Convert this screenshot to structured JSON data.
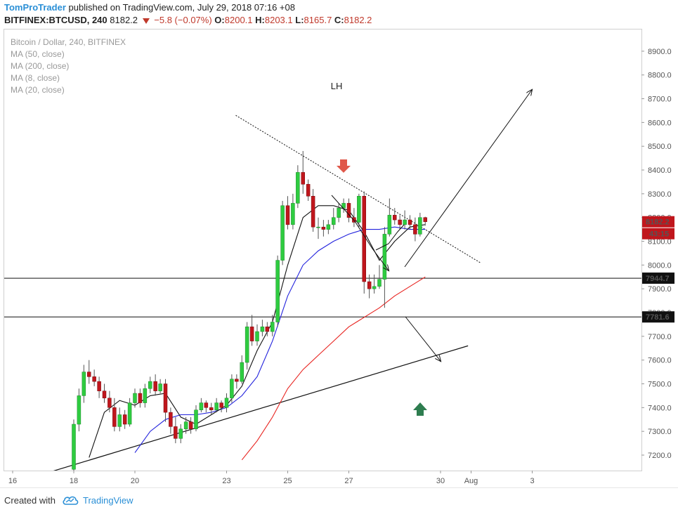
{
  "header": {
    "author": "TomProTrader",
    "published": "published on TradingView.com, July 29, 2018 07:16 +08",
    "symbol": "BITFINEX:BTCUSD, 240",
    "last": "8182.2",
    "change": "−5.8 (−0.07%)",
    "o_label": "O:",
    "o_val": "8200.1",
    "h_label": "H:",
    "h_val": "8203.1",
    "l_label": "L:",
    "l_val": "8165.7",
    "c_label": "C:",
    "c_val": "8182.2"
  },
  "legend": {
    "title": "Bitcoin / Dollar, 240, BITFINEX",
    "items": [
      "MA (50, close)",
      "MA (200, close)",
      "MA (8, close)",
      "MA (20, close)"
    ]
  },
  "footer": {
    "created": "Created with",
    "brand": "TradingView"
  },
  "colors": {
    "up": "#2ecc40",
    "down": "#c0161c",
    "ma_red": "#e8231f",
    "ma_blue": "#2222dd",
    "ma_black": "#111111",
    "arrow_red": "#e0584a",
    "arrow_green": "#2e7d4f",
    "price_box": "#c0161c"
  },
  "chart_data": {
    "type": "candlestick",
    "y_axis": {
      "ylim": [
        7140,
        9020
      ],
      "ticks": [
        7200,
        7300,
        7400,
        7500,
        7600,
        7700,
        7800,
        7900,
        8000,
        8100,
        8200,
        8300,
        8400,
        8500,
        8600,
        8700,
        8800,
        8900
      ]
    },
    "x_axis": {
      "ticks": [
        {
          "label": "16",
          "t": 16
        },
        {
          "label": "18",
          "t": 18
        },
        {
          "label": "20",
          "t": 20
        },
        {
          "label": "23",
          "t": 23
        },
        {
          "label": "25",
          "t": 25
        },
        {
          "label": "27",
          "t": 27
        },
        {
          "label": "30",
          "t": 30
        },
        {
          "label": "Aug",
          "t": 31
        },
        {
          "label": "3",
          "t": 33
        }
      ]
    },
    "candles": [
      [
        18.0,
        7140,
        7330,
        7100,
        7350
      ],
      [
        18.17,
        7330,
        7450,
        7300,
        7480
      ],
      [
        18.33,
        7450,
        7550,
        7420,
        7580
      ],
      [
        18.5,
        7550,
        7530,
        7500,
        7600
      ],
      [
        18.67,
        7530,
        7510,
        7490,
        7560
      ],
      [
        18.83,
        7510,
        7470,
        7440,
        7530
      ],
      [
        19.0,
        7470,
        7440,
        7420,
        7500
      ],
      [
        19.17,
        7440,
        7400,
        7380,
        7470
      ],
      [
        19.33,
        7400,
        7320,
        7300,
        7440
      ],
      [
        19.5,
        7320,
        7370,
        7300,
        7400
      ],
      [
        19.67,
        7370,
        7330,
        7310,
        7390
      ],
      [
        19.83,
        7330,
        7420,
        7320,
        7440
      ],
      [
        20.0,
        7420,
        7460,
        7400,
        7480
      ],
      [
        20.17,
        7460,
        7420,
        7400,
        7480
      ],
      [
        20.33,
        7420,
        7480,
        7400,
        7500
      ],
      [
        20.5,
        7480,
        7510,
        7460,
        7530
      ],
      [
        20.67,
        7510,
        7470,
        7450,
        7540
      ],
      [
        20.83,
        7470,
        7500,
        7460,
        7520
      ],
      [
        21.0,
        7500,
        7380,
        7340,
        7520
      ],
      [
        21.17,
        7380,
        7320,
        7290,
        7400
      ],
      [
        21.33,
        7320,
        7270,
        7250,
        7360
      ],
      [
        21.5,
        7270,
        7310,
        7250,
        7330
      ],
      [
        21.67,
        7310,
        7340,
        7290,
        7360
      ],
      [
        21.83,
        7340,
        7310,
        7290,
        7360
      ],
      [
        22.0,
        7310,
        7390,
        7300,
        7410
      ],
      [
        22.17,
        7390,
        7420,
        7380,
        7440
      ],
      [
        22.33,
        7420,
        7400,
        7380,
        7430
      ],
      [
        22.5,
        7400,
        7390,
        7370,
        7420
      ],
      [
        22.67,
        7390,
        7420,
        7380,
        7440
      ],
      [
        22.83,
        7420,
        7400,
        7380,
        7430
      ],
      [
        23.0,
        7400,
        7440,
        7380,
        7460
      ],
      [
        23.17,
        7440,
        7520,
        7420,
        7540
      ],
      [
        23.33,
        7520,
        7510,
        7480,
        7540
      ],
      [
        23.5,
        7510,
        7590,
        7500,
        7620
      ],
      [
        23.67,
        7590,
        7740,
        7560,
        7760
      ],
      [
        23.83,
        7740,
        7680,
        7660,
        7790
      ],
      [
        24.0,
        7680,
        7720,
        7660,
        7750
      ],
      [
        24.17,
        7720,
        7740,
        7700,
        7770
      ],
      [
        24.33,
        7740,
        7720,
        7700,
        7760
      ],
      [
        24.5,
        7720,
        7760,
        7700,
        7790
      ],
      [
        24.67,
        7760,
        8020,
        7740,
        8040
      ],
      [
        24.83,
        8020,
        8250,
        8000,
        8270
      ],
      [
        25.0,
        8250,
        8170,
        8150,
        8290
      ],
      [
        25.17,
        8170,
        8260,
        8150,
        8300
      ],
      [
        25.33,
        8260,
        8390,
        8240,
        8420
      ],
      [
        25.5,
        8390,
        8340,
        8300,
        8480
      ],
      [
        25.67,
        8340,
        8290,
        8270,
        8360
      ],
      [
        25.83,
        8290,
        8160,
        8140,
        8320
      ],
      [
        26.0,
        8160,
        8160,
        8110,
        8200
      ],
      [
        26.17,
        8160,
        8150,
        8120,
        8190
      ],
      [
        26.33,
        8150,
        8170,
        8130,
        8190
      ],
      [
        26.5,
        8170,
        8200,
        8150,
        8240
      ],
      [
        26.67,
        8200,
        8240,
        8180,
        8260
      ],
      [
        26.83,
        8240,
        8260,
        8220,
        8280
      ],
      [
        27.0,
        8260,
        8200,
        8180,
        8280
      ],
      [
        27.17,
        8200,
        8180,
        8160,
        8240
      ],
      [
        27.33,
        8180,
        8290,
        8160,
        8300
      ],
      [
        27.5,
        8290,
        7930,
        7880,
        8310
      ],
      [
        27.67,
        7930,
        7900,
        7860,
        7960
      ],
      [
        27.83,
        7900,
        7910,
        7880,
        7960
      ],
      [
        28.0,
        7910,
        7940,
        7900,
        8000
      ],
      [
        28.17,
        7940,
        8130,
        7820,
        8160
      ],
      [
        28.33,
        8130,
        8210,
        8120,
        8280
      ],
      [
        28.5,
        8210,
        8190,
        8170,
        8240
      ],
      [
        28.67,
        8190,
        8170,
        8150,
        8210
      ],
      [
        28.83,
        8170,
        8190,
        8150,
        8230
      ],
      [
        29.0,
        8190,
        8170,
        8150,
        8210
      ],
      [
        29.17,
        8170,
        8130,
        8100,
        8200
      ],
      [
        29.33,
        8130,
        8200,
        8120,
        8220
      ],
      [
        29.5,
        8200,
        8182.2,
        8165.7,
        8203.1
      ]
    ],
    "ma": [
      {
        "name": "MA (50, close)",
        "color": "#2222dd",
        "points": [
          [
            20.0,
            7210
          ],
          [
            20.5,
            7300
          ],
          [
            21.0,
            7350
          ],
          [
            21.5,
            7370
          ],
          [
            22.0,
            7370
          ],
          [
            22.5,
            7380
          ],
          [
            23.0,
            7400
          ],
          [
            23.5,
            7450
          ],
          [
            24.0,
            7530
          ],
          [
            24.5,
            7680
          ],
          [
            25.0,
            7870
          ],
          [
            25.5,
            8000
          ],
          [
            26.0,
            8060
          ],
          [
            26.5,
            8100
          ],
          [
            27.0,
            8130
          ],
          [
            27.5,
            8150
          ],
          [
            28.0,
            8150
          ],
          [
            28.5,
            8160
          ],
          [
            29.0,
            8150
          ],
          [
            29.5,
            8150
          ]
        ]
      },
      {
        "name": "MA (200, close)",
        "color": "#e8231f",
        "points": [
          [
            23.5,
            7180
          ],
          [
            24.0,
            7260
          ],
          [
            24.5,
            7360
          ],
          [
            25.0,
            7480
          ],
          [
            25.5,
            7560
          ],
          [
            26.0,
            7620
          ],
          [
            26.5,
            7680
          ],
          [
            27.0,
            7740
          ],
          [
            27.5,
            7780
          ],
          [
            28.0,
            7820
          ],
          [
            28.5,
            7870
          ],
          [
            29.0,
            7910
          ],
          [
            29.5,
            7950
          ]
        ]
      },
      {
        "name": "MA (8, close)",
        "color": "#111111",
        "points": [
          [
            18.5,
            7190
          ],
          [
            19.0,
            7380
          ],
          [
            19.5,
            7430
          ],
          [
            20.0,
            7410
          ],
          [
            20.5,
            7450
          ],
          [
            21.0,
            7460
          ],
          [
            21.5,
            7360
          ],
          [
            22.0,
            7330
          ],
          [
            22.5,
            7370
          ],
          [
            23.0,
            7410
          ],
          [
            23.5,
            7490
          ],
          [
            24.0,
            7640
          ],
          [
            24.5,
            7760
          ],
          [
            25.0,
            8000
          ],
          [
            25.5,
            8200
          ],
          [
            26.0,
            8250
          ],
          [
            26.5,
            8250
          ],
          [
            27.0,
            8230
          ],
          [
            27.5,
            8140
          ],
          [
            28.0,
            8020
          ],
          [
            28.5,
            8100
          ],
          [
            29.0,
            8160
          ],
          [
            29.5,
            8170
          ]
        ]
      }
    ],
    "hlines": [
      {
        "y": 7944.7,
        "label": "7944.7"
      },
      {
        "y": 7781.6,
        "label": "7781.6"
      }
    ],
    "price_tag": {
      "y": 8182.2,
      "label": "8182.2",
      "timer": "43:15"
    },
    "trendline": {
      "p1": [
        17.25,
        7130
      ],
      "p2": [
        30.9,
        7660
      ]
    },
    "dotted_trendline": {
      "p1": [
        23.3,
        8630
      ],
      "p2": [
        31.3,
        8010
      ]
    },
    "annotation": {
      "text": "LH",
      "t": 26.6,
      "y": 8740
    }
  }
}
